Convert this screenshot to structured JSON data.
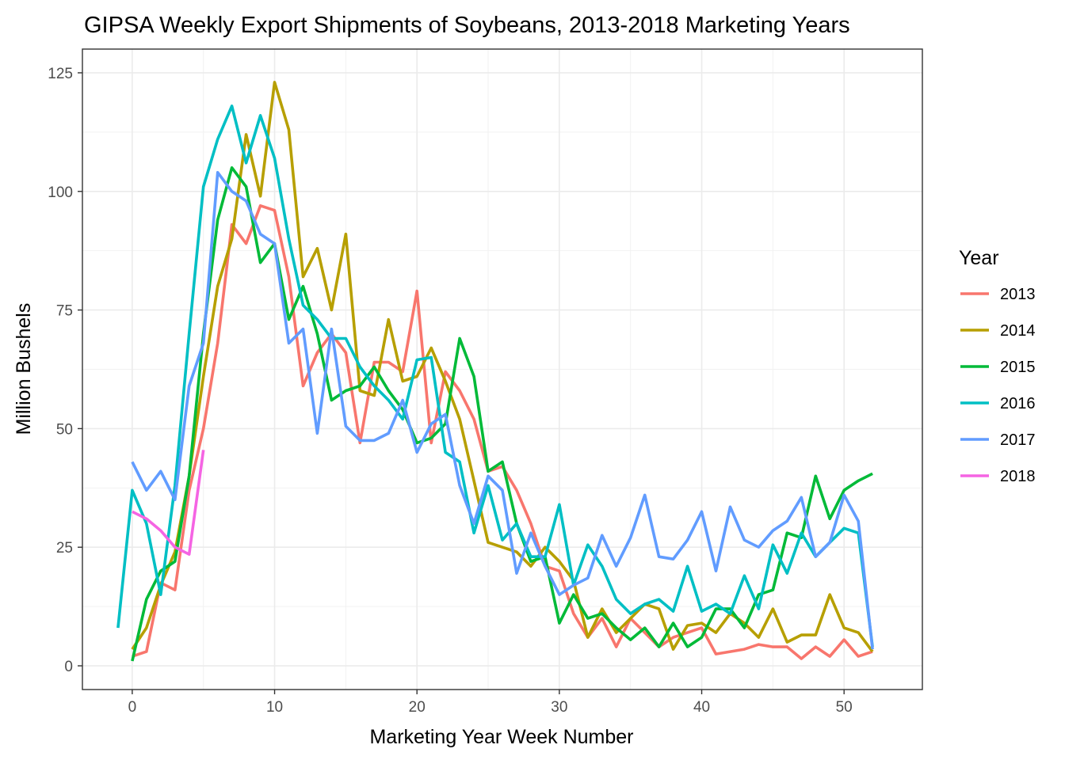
{
  "chart_data": {
    "type": "line",
    "title": "GIPSA Weekly Export Shipments of Soybeans, 2013-2018 Marketing Years",
    "xlabel": "Marketing Year Week Number",
    "ylabel": "Million Bushels",
    "xlim": [
      -3.5,
      55.5
    ],
    "ylim": [
      -5,
      130
    ],
    "xticks": [
      0,
      10,
      20,
      30,
      40,
      50
    ],
    "yticks": [
      0,
      25,
      50,
      75,
      100,
      125
    ],
    "grid": true,
    "legend": {
      "title": "Year",
      "position": "right"
    },
    "series": [
      {
        "name": "2013",
        "color": "#F8766D",
        "x": [
          0,
          1,
          2,
          3,
          4,
          5,
          6,
          7,
          8,
          9,
          10,
          11,
          12,
          13,
          14,
          15,
          16,
          17,
          18,
          19,
          20,
          21,
          22,
          23,
          24,
          25,
          26,
          27,
          28,
          29,
          30,
          31,
          32,
          33,
          34,
          35,
          36,
          37,
          38,
          39,
          40,
          41,
          42,
          43,
          44,
          45,
          46,
          47,
          48,
          49,
          50,
          51,
          52
        ],
        "y": [
          2,
          3,
          17.5,
          16,
          37,
          50,
          68,
          93,
          89,
          97,
          96,
          82,
          59,
          66,
          70,
          66,
          47,
          64,
          64,
          62,
          79,
          47,
          62,
          58,
          52,
          41,
          42,
          37,
          30,
          21,
          20,
          11,
          6,
          10,
          4,
          10,
          7,
          4,
          6,
          7,
          8,
          2.5,
          3,
          3.5,
          4.5,
          4,
          4,
          1.5,
          4,
          2,
          5.5,
          2,
          3
        ]
      },
      {
        "name": "2014",
        "color": "#B79F00",
        "x": [
          0,
          1,
          2,
          3,
          4,
          5,
          6,
          7,
          8,
          9,
          10,
          11,
          12,
          13,
          14,
          15,
          16,
          17,
          18,
          19,
          20,
          21,
          22,
          23,
          24,
          25,
          26,
          27,
          28,
          29,
          30,
          31,
          32,
          33,
          34,
          35,
          36,
          37,
          38,
          39,
          40,
          41,
          42,
          43,
          44,
          45,
          46,
          47,
          48,
          49,
          50,
          51,
          52
        ],
        "y": [
          3.5,
          8,
          17,
          24,
          40,
          61,
          80,
          90,
          112,
          99,
          123,
          113,
          82,
          88,
          75,
          91,
          58,
          57,
          73,
          60,
          61,
          67,
          60,
          52,
          39,
          26,
          25,
          24,
          21,
          25,
          22,
          18,
          6,
          12,
          7,
          10,
          13,
          12,
          3.5,
          8.5,
          9,
          7,
          11,
          9,
          6,
          12,
          5,
          6.5,
          6.5,
          15,
          8,
          7,
          3
        ]
      },
      {
        "name": "2015",
        "color": "#00BA38",
        "x": [
          0,
          1,
          2,
          3,
          4,
          5,
          6,
          7,
          8,
          9,
          10,
          11,
          12,
          13,
          14,
          15,
          16,
          17,
          18,
          19,
          20,
          21,
          22,
          23,
          24,
          25,
          26,
          27,
          28,
          29,
          30,
          31,
          32,
          33,
          34,
          35,
          36,
          37,
          38,
          39,
          40,
          41,
          42,
          43,
          44,
          45,
          46,
          47,
          48,
          49,
          50,
          51,
          52
        ],
        "y": [
          1,
          14,
          20,
          22,
          40,
          70,
          94,
          105,
          101,
          85,
          89,
          73,
          80,
          70,
          56,
          58,
          59,
          63,
          58,
          54,
          47,
          48,
          51,
          69,
          61,
          41,
          43,
          30,
          22,
          23,
          9,
          15,
          10,
          11,
          8,
          5.5,
          8,
          4,
          9,
          4,
          6,
          12,
          12,
          8,
          15,
          16,
          28,
          27,
          40,
          31,
          37,
          39,
          40.5
        ]
      },
      {
        "name": "2016",
        "color": "#00BFC4",
        "x": [
          -1,
          0,
          1,
          2,
          3,
          4,
          5,
          6,
          7,
          8,
          9,
          10,
          11,
          12,
          13,
          14,
          15,
          16,
          17,
          18,
          19,
          20,
          21,
          22,
          23,
          24,
          25,
          26,
          27,
          28,
          29,
          30,
          31,
          32,
          33,
          34,
          35,
          36,
          37,
          38,
          39,
          40,
          41,
          42,
          43,
          44,
          45,
          46,
          47,
          48,
          49,
          50,
          51,
          52
        ],
        "y": [
          8,
          37,
          30,
          15,
          38,
          70,
          101,
          111,
          118,
          106,
          116,
          107,
          90,
          76,
          73,
          69,
          69,
          63,
          59,
          56,
          52,
          64.5,
          65,
          45,
          43,
          28,
          38,
          26.5,
          30,
          23,
          23,
          34,
          17,
          25.5,
          21,
          14,
          11,
          13,
          14,
          11.5,
          21,
          11.5,
          13,
          11,
          19,
          12,
          25.5,
          19.5,
          28,
          23,
          26,
          29,
          28,
          4
        ]
      },
      {
        "name": "2017",
        "color": "#619CFF",
        "x": [
          0,
          1,
          2,
          3,
          4,
          5,
          6,
          7,
          8,
          9,
          10,
          11,
          12,
          13,
          14,
          15,
          16,
          17,
          18,
          19,
          20,
          21,
          22,
          23,
          24,
          25,
          26,
          27,
          28,
          29,
          30,
          31,
          32,
          33,
          34,
          35,
          36,
          37,
          38,
          39,
          40,
          41,
          42,
          43,
          44,
          45,
          46,
          47,
          48,
          49,
          50,
          51,
          52
        ],
        "y": [
          43,
          37,
          41,
          35,
          59,
          68,
          104,
          100,
          98,
          91,
          89,
          68,
          71,
          49,
          71,
          50.5,
          47.5,
          47.5,
          49,
          56,
          45,
          51,
          53,
          38,
          30,
          40,
          37,
          19.5,
          28,
          21,
          15,
          17,
          18.5,
          27.5,
          21,
          27,
          36,
          23,
          22.5,
          26.5,
          32.5,
          20,
          33.5,
          26.5,
          25,
          28.5,
          30.5,
          35.5,
          23,
          26,
          36,
          30.5,
          3.5
        ]
      },
      {
        "name": "2018",
        "color": "#F564E3",
        "x": [
          0,
          1,
          2,
          3,
          4,
          5
        ],
        "y": [
          32.5,
          31,
          28.5,
          25,
          23.5,
          45.5
        ]
      }
    ]
  }
}
